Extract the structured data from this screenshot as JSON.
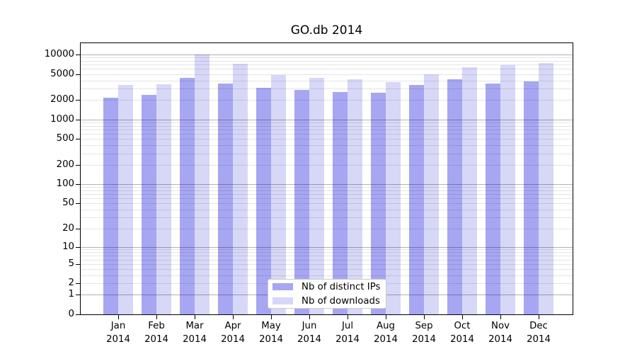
{
  "title": "GO.db 2014",
  "chart_data": {
    "type": "bar",
    "title": "GO.db 2014",
    "categories": [
      "Jan 2014",
      "Feb 2014",
      "Mar 2014",
      "Apr 2014",
      "May 2014",
      "Jun 2014",
      "Jul 2014",
      "Aug 2014",
      "Sep 2014",
      "Oct 2014",
      "Nov 2014",
      "Dec 2014"
    ],
    "x_tick_line1": [
      "Jan",
      "Feb",
      "Mar",
      "Apr",
      "May",
      "Jun",
      "Jul",
      "Aug",
      "Sep",
      "Oct",
      "Nov",
      "Dec"
    ],
    "x_tick_line2": [
      "2014",
      "2014",
      "2014",
      "2014",
      "2014",
      "2014",
      "2014",
      "2014",
      "2014",
      "2014",
      "2014",
      "2014"
    ],
    "series": [
      {
        "name": "Nb of distinct IPs",
        "color": "#a6a6f2",
        "values": [
          2180,
          2390,
          4410,
          3550,
          3080,
          2850,
          2650,
          2600,
          3430,
          4120,
          3570,
          3850
        ]
      },
      {
        "name": "Nb of downloads",
        "color": "#d7d7f7",
        "values": [
          3400,
          3480,
          10100,
          7200,
          4790,
          4370,
          4120,
          3790,
          4920,
          6370,
          6920,
          7500
        ]
      }
    ],
    "yscale": "log1p",
    "ylim": [
      0,
      15700
    ],
    "yticks": [
      0,
      1,
      2,
      5,
      10,
      20,
      50,
      100,
      200,
      500,
      1000,
      2000,
      5000,
      10000
    ],
    "major_gridlines": [
      1,
      10,
      100,
      1000,
      10000
    ],
    "grid": "on",
    "xlabel": "",
    "ylabel": "",
    "legend_position": "lower center",
    "axis_color": "#000000",
    "background_color": "#ffffff"
  }
}
